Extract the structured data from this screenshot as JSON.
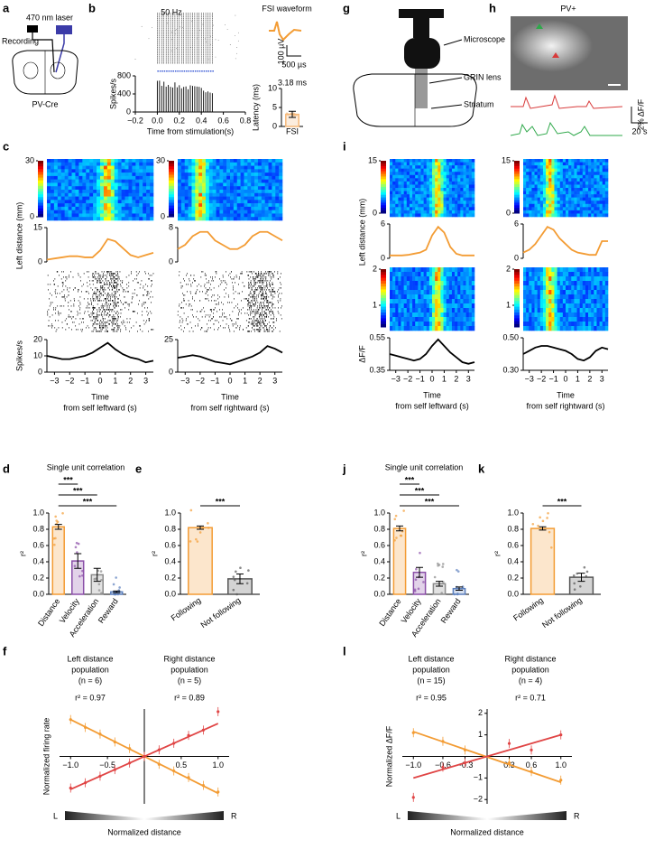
{
  "panel_letters": [
    "a",
    "b",
    "c",
    "d",
    "e",
    "f",
    "g",
    "h",
    "i",
    "j",
    "k",
    "l"
  ],
  "panel_a": {
    "laser": "470 nm laser",
    "recording": "Recording",
    "mouse": "PV-Cre"
  },
  "panel_b": {
    "waveform_title": "FSI waveform",
    "scale_v": "100 µV",
    "scale_t": "500 µs"
  },
  "panel_g": {
    "microscope": "Microscope",
    "lens": "GRIN lens",
    "region": "Striatum"
  },
  "panel_h": {
    "title": "PV+",
    "scale_y": "2% ΔF/F",
    "scale_x": "20 s"
  },
  "chart_data": [
    {
      "type": "psth",
      "title": "50 Hz",
      "ylabel": "Spikes/s",
      "xlabel": "Time from stimulation(s)",
      "xlim": [
        -0.2,
        0.8
      ],
      "xticks": [
        {
          "value": -0.2,
          "label": "−0.2"
        },
        {
          "value": 0,
          "label": "0.0"
        },
        0.2,
        0.4,
        0.6,
        0.8
      ],
      "ylim": [
        0,
        800
      ],
      "yticks": [
        0,
        400,
        800
      ]
    },
    {
      "type": "bar",
      "ylabel": "Latency (ms)",
      "categories": [
        "FSI"
      ],
      "values": [
        3.18
      ],
      "errors": [
        0.8
      ],
      "value_labels": [
        "3.18 ms"
      ],
      "colors": [
        "#f5b97a"
      ],
      "ylim": [
        0,
        10
      ],
      "yticks": [
        0,
        5,
        10
      ]
    },
    {
      "type": "heatmap",
      "clim": [
        0,
        30
      ],
      "cticks": [
        0,
        30
      ]
    },
    {
      "type": "line",
      "ylabel": "Left distance (mm)",
      "color": "#f39c34",
      "xlim": [
        -3.5,
        3.5
      ],
      "ylim": [
        0,
        15
      ],
      "yticks": [
        0,
        15
      ],
      "x": [
        -3.5,
        -3,
        -2.5,
        -2,
        -1.5,
        -1,
        -0.5,
        0,
        0.5,
        1,
        1.5,
        2,
        2.5,
        3,
        3.5
      ],
      "values": [
        1,
        1.5,
        2,
        2.5,
        2.5,
        2,
        2,
        5,
        10,
        9,
        6,
        3,
        2,
        3,
        4
      ]
    },
    {
      "type": "line",
      "ylabel": "Spikes/s",
      "xlabel": [
        "Time",
        "from self leftward (s)"
      ],
      "color": "#000000",
      "xlim": [
        -3.5,
        3.5
      ],
      "ylim": [
        0,
        20
      ],
      "yticks": [
        0,
        10,
        20
      ],
      "xticks": [
        {
          "value": -3,
          "label": "−3"
        },
        {
          "value": -2,
          "label": "−2"
        },
        {
          "value": -1,
          "label": "−1"
        },
        0,
        1,
        2,
        3
      ],
      "x": [
        -3.5,
        -3,
        -2.5,
        -2,
        -1.5,
        -1,
        -0.5,
        0,
        0.5,
        1,
        1.5,
        2,
        2.5,
        3,
        3.5
      ],
      "values": [
        10,
        9,
        8,
        8,
        9,
        10,
        12,
        15,
        18,
        14,
        11,
        9,
        8,
        6,
        7
      ]
    },
    {
      "type": "heatmap",
      "clim": [
        0,
        30
      ],
      "cticks": [
        0,
        30
      ]
    },
    {
      "type": "line",
      "color": "#f39c34",
      "xlim": [
        -3.5,
        3.5
      ],
      "ylim": [
        0,
        8
      ],
      "yticks": [
        0,
        8
      ],
      "x": [
        -3.5,
        -3,
        -2.5,
        -2,
        -1.5,
        -1,
        -0.5,
        0,
        0.5,
        1,
        1.5,
        2,
        2.5,
        3,
        3.5
      ],
      "values": [
        3,
        4,
        6,
        7,
        7,
        5,
        4,
        3,
        3,
        4,
        6,
        7,
        7,
        6,
        5
      ]
    },
    {
      "type": "line",
      "xlabel": [
        "Time",
        "from self rightward (s)"
      ],
      "color": "#000000",
      "xlim": [
        -3.5,
        3.5
      ],
      "ylim": [
        0,
        25
      ],
      "yticks": [
        0,
        25
      ],
      "xticks": [
        {
          "value": -3,
          "label": "−3"
        },
        {
          "value": -2,
          "label": "−2"
        },
        {
          "value": -1,
          "label": "−1"
        },
        0,
        1,
        2,
        3
      ],
      "x": [
        -3.5,
        -3,
        -2.5,
        -2,
        -1.5,
        -1,
        -0.5,
        0,
        0.5,
        1,
        1.5,
        2,
        2.5,
        3,
        3.5
      ],
      "values": [
        11,
        12,
        13,
        12,
        10,
        8,
        7,
        6,
        8,
        10,
        12,
        15,
        20,
        18,
        15
      ]
    },
    {
      "type": "heatmap",
      "clim": [
        0,
        15
      ],
      "cticks": [
        0,
        15
      ]
    },
    {
      "type": "line",
      "ylabel": "Left distance (mm)",
      "color": "#f39c34",
      "xlim": [
        -3.5,
        3.5
      ],
      "ylim": [
        0,
        6
      ],
      "yticks": [
        0,
        6
      ],
      "x": [
        -3.5,
        -3,
        -2.5,
        -2,
        -1.5,
        -1,
        -0.5,
        0,
        0.5,
        1,
        1.5,
        2,
        2.5,
        3,
        3.5
      ],
      "values": [
        0.5,
        0.5,
        0.5,
        0.6,
        0.8,
        1,
        1.5,
        4,
        5.5,
        4.5,
        2,
        0.8,
        0.5,
        0.5,
        0.5
      ]
    },
    {
      "type": "heatmap",
      "clim": [
        0.4,
        2
      ],
      "cticks": [
        1,
        2
      ]
    },
    {
      "type": "line",
      "ylabel": "ΔF/F",
      "xlabel": [
        "Time",
        "from self leftward (s)"
      ],
      "color": "#000000",
      "xlim": [
        -3.5,
        3.5
      ],
      "ylim": [
        0.35,
        0.55
      ],
      "yticks": [
        0.35,
        0.55
      ],
      "xticks": [
        {
          "value": -3,
          "label": "−3"
        },
        {
          "value": -2,
          "label": "−2"
        },
        {
          "value": -1,
          "label": "−1"
        },
        0,
        1,
        2,
        3
      ],
      "x": [
        -3.5,
        -3,
        -2.5,
        -2,
        -1.5,
        -1,
        -0.5,
        0,
        0.5,
        1,
        1.5,
        2,
        2.5,
        3,
        3.5
      ],
      "values": [
        0.45,
        0.44,
        0.43,
        0.42,
        0.41,
        0.42,
        0.45,
        0.5,
        0.54,
        0.5,
        0.46,
        0.43,
        0.4,
        0.39,
        0.4
      ]
    },
    {
      "type": "heatmap",
      "clim": [
        0,
        15
      ],
      "cticks": [
        0,
        15
      ]
    },
    {
      "type": "line",
      "color": "#f39c34",
      "xlim": [
        -3.5,
        3.5
      ],
      "ylim": [
        0,
        6
      ],
      "yticks": [
        0,
        6
      ],
      "x": [
        -3.5,
        -3,
        -2.5,
        -2,
        -1.5,
        -1,
        -0.5,
        0,
        0.5,
        1,
        1.5,
        2,
        2.5,
        3,
        3.5
      ],
      "values": [
        1,
        1.5,
        2.5,
        4,
        5.5,
        5,
        3.5,
        2.5,
        1.5,
        1,
        0.8,
        0.6,
        0.6,
        3,
        3
      ]
    },
    {
      "type": "heatmap",
      "clim": [
        0.4,
        2
      ],
      "cticks": [
        1,
        2
      ]
    },
    {
      "type": "line",
      "xlabel": [
        "Time",
        "from self rightward (s)"
      ],
      "color": "#000000",
      "xlim": [
        -3.5,
        3.5
      ],
      "ylim": [
        0.3,
        0.5
      ],
      "yticks": [
        {
          "value": 0.3,
          "label": "0.30"
        },
        {
          "value": 0.5,
          "label": "0.50"
        }
      ],
      "xticks": [
        {
          "value": -3,
          "label": "−3"
        },
        {
          "value": -2,
          "label": "−2"
        },
        {
          "value": -1,
          "label": "−1"
        },
        0,
        1,
        2,
        3
      ],
      "x": [
        -3.5,
        -3,
        -2.5,
        -2,
        -1.5,
        -1,
        -0.5,
        0,
        0.5,
        1,
        1.5,
        2,
        2.5,
        3,
        3.5
      ],
      "values": [
        0.4,
        0.42,
        0.44,
        0.45,
        0.45,
        0.44,
        0.43,
        0.42,
        0.4,
        0.37,
        0.36,
        0.38,
        0.42,
        0.44,
        0.43
      ]
    },
    {
      "type": "bar",
      "title": "Single unit correlation",
      "ylabel": "r²",
      "categories": [
        "Distance",
        "Velocity",
        "Acceleration",
        "Reward"
      ],
      "values": [
        0.83,
        0.41,
        0.24,
        0.03
      ],
      "errors": [
        0.03,
        0.09,
        0.08,
        0.01
      ],
      "colors": [
        "#f39c34",
        "#8b4fa8",
        "#8a8a8a",
        "#5b7fbd"
      ],
      "significance": [
        "***",
        "***",
        "***"
      ],
      "ylim": [
        0,
        1
      ],
      "yticks": [
        {
          "value": 0,
          "label": "0.0"
        },
        0.2,
        0.4,
        0.6,
        0.8,
        {
          "value": 1,
          "label": "1.0"
        }
      ]
    },
    {
      "type": "bar",
      "ylabel": "r²",
      "categories": [
        "Following",
        "Not following"
      ],
      "values": [
        0.82,
        0.19
      ],
      "errors": [
        0.02,
        0.06
      ],
      "colors": [
        "#f39c34",
        "#555555"
      ],
      "significance": [
        "***"
      ],
      "ylim": [
        0,
        1
      ],
      "yticks": [
        {
          "value": 0,
          "label": "0.0"
        },
        0.2,
        0.4,
        0.6,
        0.8,
        {
          "value": 1,
          "label": "1.0"
        }
      ]
    },
    {
      "type": "bar",
      "title": "Single unit correlation",
      "ylabel": "r²",
      "categories": [
        "Distance",
        "Velocity",
        "Acceleration",
        "Reward"
      ],
      "values": [
        0.81,
        0.27,
        0.13,
        0.07
      ],
      "errors": [
        0.03,
        0.06,
        0.03,
        0.02
      ],
      "colors": [
        "#f39c34",
        "#8b4fa8",
        "#8a8a8a",
        "#5b7fbd"
      ],
      "significance": [
        "***",
        "***",
        "***"
      ],
      "ylim": [
        0,
        1
      ],
      "yticks": [
        {
          "value": 0,
          "label": "0.0"
        },
        0.2,
        0.4,
        0.6,
        0.8,
        {
          "value": 1,
          "label": "1.0"
        }
      ]
    },
    {
      "type": "bar",
      "ylabel": "r²",
      "categories": [
        "Following",
        "Not following"
      ],
      "values": [
        0.81,
        0.21
      ],
      "errors": [
        0.02,
        0.05
      ],
      "colors": [
        "#f39c34",
        "#555555"
      ],
      "significance": [
        "***"
      ],
      "ylim": [
        0,
        1
      ],
      "yticks": [
        {
          "value": 0,
          "label": "0.0"
        },
        0.2,
        0.4,
        0.6,
        0.8,
        {
          "value": 1,
          "label": "1.0"
        }
      ]
    },
    {
      "type": "scatter",
      "ylabel": "Normalized firing rate",
      "xlabel": "Normalized distance",
      "ends": [
        "L",
        "R"
      ],
      "xlim": [
        -1.15,
        1.15
      ],
      "ylim": [
        -1.8,
        1.8
      ],
      "xticks": [
        {
          "value": -1,
          "label": "−1.0"
        },
        {
          "value": -0.5,
          "label": "−0.5"
        },
        0.5,
        {
          "value": 1,
          "label": "1.0"
        }
      ],
      "series": [
        {
          "label_lines": [
            "Left distance",
            "population",
            "(n = 6)"
          ],
          "r2_label": "r² = 0.97",
          "color": "#f39c34",
          "x": [
            -1,
            -0.8,
            -0.6,
            -0.4,
            -0.2,
            0,
            0.2,
            0.4,
            0.6,
            0.8,
            1
          ],
          "values": [
            1.4,
            1.1,
            0.85,
            0.55,
            0.3,
            0,
            -0.3,
            -0.55,
            -0.8,
            -1.1,
            -1.35
          ],
          "fit_x": [
            -1,
            1
          ],
          "fit_y": [
            1.4,
            -1.4
          ]
        },
        {
          "label_lines": [
            "Right distance",
            "population",
            "(n = 5)"
          ],
          "r2_label": "r² = 0.89",
          "color": "#e04545",
          "x": [
            -1,
            -0.8,
            -0.6,
            -0.4,
            -0.2,
            0,
            0.2,
            0.4,
            0.6,
            0.8,
            1
          ],
          "values": [
            -1.2,
            -1,
            -0.75,
            -0.5,
            -0.25,
            0,
            0.25,
            0.5,
            0.8,
            1,
            1.7
          ],
          "fit_x": [
            -1,
            1
          ],
          "fit_y": [
            -1.25,
            1.25
          ]
        }
      ]
    },
    {
      "type": "scatter",
      "ylabel": "Normalized ΔF/F",
      "xlabel": "Normalized distance",
      "ends": [
        "L",
        "R"
      ],
      "xlim": [
        -1.15,
        1.15
      ],
      "ylim": [
        -2.2,
        2.2
      ],
      "yticks": [
        {
          "value": -2,
          "label": "−2"
        },
        {
          "value": -1,
          "label": "−1"
        },
        1,
        2
      ],
      "xticks": [
        {
          "value": -1,
          "label": "−1.0"
        },
        {
          "value": -0.6,
          "label": "−0.6"
        },
        {
          "value": -0.3,
          "label": "−0.3"
        },
        0.3,
        0.6,
        {
          "value": 1,
          "label": "1.0"
        }
      ],
      "series": [
        {
          "label_lines": [
            "Left distance",
            "population",
            "(n = 15)"
          ],
          "r2_label": "r² = 0.95",
          "color": "#f39c34",
          "x": [
            -1,
            -0.6,
            -0.3,
            0.3,
            0.6,
            1
          ],
          "values": [
            1.1,
            0.7,
            0.3,
            -0.3,
            -0.7,
            -1.1
          ],
          "fit_x": [
            -1,
            1
          ],
          "fit_y": [
            1.15,
            -1.2
          ]
        },
        {
          "label_lines": [
            "Right distance",
            "population",
            "(n = 4)"
          ],
          "r2_label": "r² = 0.71",
          "color": "#e04545",
          "x": [
            -1,
            -0.6,
            -0.3,
            0.3,
            0.6,
            1
          ],
          "values": [
            -1.9,
            -0.5,
            -0.3,
            0.6,
            0.3,
            1
          ],
          "fit_x": [
            -1,
            1
          ],
          "fit_y": [
            -1,
            1
          ]
        }
      ]
    }
  ]
}
